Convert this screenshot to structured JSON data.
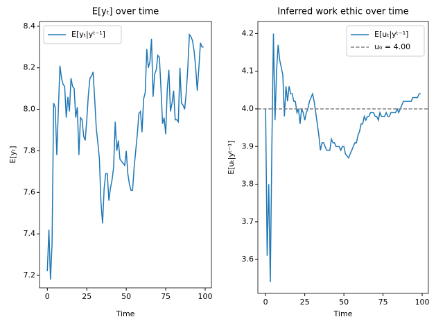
{
  "chart_data": [
    {
      "type": "line",
      "title": "E[yₜ] over time",
      "xlabel": "Time",
      "ylabel": "E[yₜ]",
      "x": [
        0,
        1,
        2,
        3,
        4,
        5,
        6,
        7,
        8,
        9,
        10,
        11,
        12,
        13,
        14,
        15,
        16,
        17,
        18,
        19,
        20,
        21,
        22,
        23,
        24,
        25,
        26,
        27,
        28,
        29,
        30,
        31,
        32,
        33,
        34,
        35,
        36,
        37,
        38,
        39,
        40,
        41,
        42,
        43,
        44,
        45,
        46,
        47,
        48,
        49,
        50,
        51,
        52,
        53,
        54,
        55,
        56,
        57,
        58,
        59,
        60,
        61,
        62,
        63,
        64,
        65,
        66,
        67,
        68,
        69,
        70,
        71,
        72,
        73,
        74,
        75,
        76,
        77,
        78,
        79,
        80,
        81,
        82,
        83,
        84,
        85,
        86,
        87,
        88,
        89,
        90,
        91,
        92,
        93,
        94,
        95,
        96,
        97,
        98,
        99
      ],
      "series": [
        {
          "name": "E[yₜ|yᵗ⁻¹]",
          "color": "#1f77b4",
          "values": [
            7.22,
            7.42,
            7.18,
            7.35,
            8.03,
            8.01,
            7.78,
            8.0,
            8.21,
            8.15,
            8.12,
            8.11,
            7.96,
            8.06,
            7.99,
            8.15,
            8.11,
            8.1,
            7.96,
            8.01,
            7.78,
            7.96,
            7.95,
            7.87,
            7.85,
            7.95,
            8.07,
            8.15,
            8.16,
            8.18,
            8.05,
            7.91,
            7.84,
            7.76,
            7.55,
            7.45,
            7.62,
            7.69,
            7.69,
            7.56,
            7.62,
            7.66,
            7.72,
            7.94,
            7.8,
            7.85,
            7.76,
            7.75,
            7.74,
            7.73,
            7.8,
            7.69,
            7.64,
            7.61,
            7.61,
            7.72,
            7.8,
            7.88,
            7.98,
            7.99,
            7.89,
            8.05,
            8.08,
            8.29,
            8.2,
            8.23,
            8.34,
            8.06,
            8.17,
            8.19,
            8.26,
            8.25,
            8.1,
            7.93,
            7.96,
            7.88,
            8.1,
            8.19,
            7.99,
            8.03,
            8.09,
            7.95,
            7.95,
            7.94,
            8.2,
            8.03,
            8.02,
            8.0,
            8.08,
            8.2,
            8.36,
            8.35,
            8.33,
            8.28,
            8.2,
            8.09,
            8.2,
            8.32,
            8.3,
            8.3
          ]
        }
      ],
      "xlim": [
        -4.95,
        103.95
      ],
      "xticks": [
        0,
        25,
        50,
        75,
        100
      ],
      "ylim": [
        7.14,
        8.423
      ],
      "yticks": [
        7.2,
        7.4,
        7.6,
        7.8,
        {
          "value": 8,
          "label": "8.0"
        },
        8.2,
        8.4
      ],
      "legend": "upper left"
    },
    {
      "type": "line",
      "title": "Inferred work ethic over time",
      "xlabel": "Time",
      "ylabel": "E[uₜ|yᵗ⁻¹]",
      "x": [
        0,
        1,
        2,
        3,
        4,
        5,
        6,
        7,
        8,
        9,
        10,
        11,
        12,
        13,
        14,
        15,
        16,
        17,
        18,
        19,
        20,
        21,
        22,
        23,
        24,
        25,
        26,
        27,
        28,
        29,
        30,
        31,
        32,
        33,
        34,
        35,
        36,
        37,
        38,
        39,
        40,
        41,
        42,
        43,
        44,
        45,
        46,
        47,
        48,
        49,
        50,
        51,
        52,
        53,
        54,
        55,
        56,
        57,
        58,
        59,
        60,
        61,
        62,
        63,
        64,
        65,
        66,
        67,
        68,
        69,
        70,
        71,
        72,
        73,
        74,
        75,
        76,
        77,
        78,
        79,
        80,
        81,
        82,
        83,
        84,
        85,
        86,
        87,
        88,
        89,
        90,
        91,
        92,
        93,
        94,
        95,
        96,
        97,
        98,
        99
      ],
      "series": [
        {
          "name": "E[uₜ|yᵗ⁻¹]",
          "color": "#1f77b4",
          "values": [
            4.0,
            3.61,
            3.8,
            3.54,
            3.9,
            4.2,
            3.97,
            4.1,
            4.17,
            4.13,
            4.11,
            4.09,
            3.98,
            4.06,
            4.02,
            4.06,
            4.04,
            4.04,
            4.02,
            4.02,
            3.99,
            4.0,
            3.96,
            4.0,
            3.99,
            3.97,
            3.99,
            4.0,
            4.02,
            4.03,
            4.04,
            4.02,
            3.99,
            3.96,
            3.93,
            3.89,
            3.91,
            3.91,
            3.9,
            3.89,
            3.89,
            3.89,
            3.92,
            3.91,
            3.91,
            3.9,
            3.9,
            3.9,
            3.89,
            3.9,
            3.9,
            3.88,
            3.875,
            3.87,
            3.88,
            3.89,
            3.9,
            3.91,
            3.91,
            3.93,
            3.94,
            3.96,
            3.96,
            3.98,
            3.97,
            3.98,
            3.98,
            3.99,
            3.99,
            3.99,
            3.98,
            3.98,
            3.97,
            3.99,
            3.98,
            3.98,
            3.98,
            3.99,
            3.98,
            3.98,
            3.99,
            3.99,
            3.99,
            3.99,
            4.0,
            3.99,
            4.0,
            4.01,
            4.02,
            4.02,
            4.02,
            4.02,
            4.02,
            4.02,
            4.03,
            4.03,
            4.03,
            4.03,
            4.04,
            4.04
          ]
        }
      ],
      "reference": {
        "name": "u₀ = 4.00",
        "value": 4,
        "color": "#808080"
      },
      "xlim": [
        -4.95,
        103.95
      ],
      "xticks": [
        0,
        25,
        50,
        75,
        100
      ],
      "ylim": [
        3.51,
        4.232
      ],
      "yticks": [
        3.6,
        3.7,
        3.8,
        3.9,
        {
          "value": 4,
          "label": "4.0"
        },
        4.1,
        4.2
      ],
      "legend": "upper right"
    }
  ]
}
